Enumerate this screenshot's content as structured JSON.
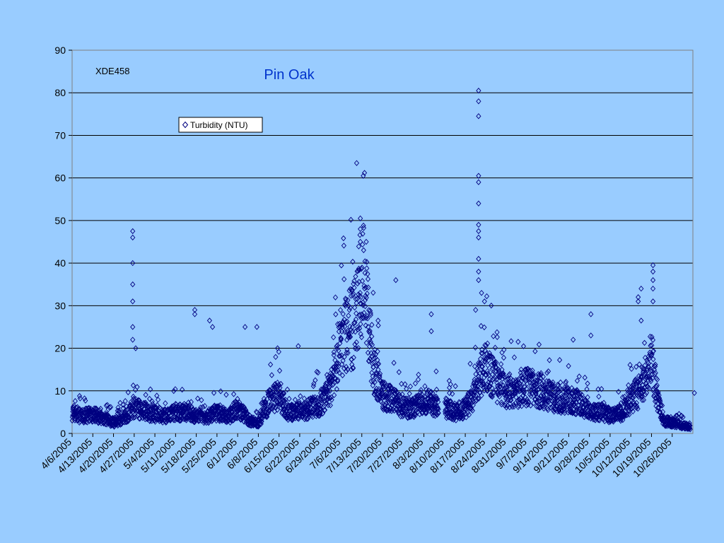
{
  "colors": {
    "background": "#99ccff",
    "plot_area": "#99ccff",
    "gridline": "#000000",
    "marker": "#000080",
    "title": "#0033cc"
  },
  "chart_data": {
    "type": "scatter",
    "title": "Pin Oak",
    "annotation": "XDE458",
    "xlabel": "",
    "ylabel": "",
    "ylim": [
      0,
      90
    ],
    "yticks": [
      0,
      10,
      20,
      30,
      40,
      50,
      60,
      70,
      80,
      90
    ],
    "xlim": [
      "4/6/2005",
      "11/2/2005"
    ],
    "xtick_labels": [
      "4/6/2005",
      "4/13/2005",
      "4/20/2005",
      "4/27/2005",
      "5/4/2005",
      "5/11/2005",
      "5/18/2005",
      "5/25/2005",
      "6/1/2005",
      "6/8/2005",
      "6/15/2005",
      "6/22/2005",
      "6/29/2005",
      "7/6/2005",
      "7/13/2005",
      "7/20/2005",
      "7/27/2005",
      "8/3/2005",
      "8/10/2005",
      "8/17/2005",
      "8/24/2005",
      "8/31/2005",
      "9/7/2005",
      "9/14/2005",
      "9/21/2005",
      "9/28/2005",
      "10/5/2005",
      "10/12/2005",
      "10/19/2005",
      "10/26/2005"
    ],
    "grid": {
      "horizontal": true,
      "vertical": false
    },
    "legend": {
      "position": "upper-left",
      "entries": [
        "Turbidity (NTU)"
      ]
    },
    "marker": "open-diamond",
    "series": [
      {
        "name": "Turbidity (NTU)",
        "baseline_profile": [
          [
            "4/6/2005",
            5
          ],
          [
            "4/9/2005",
            4
          ],
          [
            "4/13/2005",
            4.5
          ],
          [
            "4/17/2005",
            3.5
          ],
          [
            "4/20/2005",
            2.5
          ],
          [
            "4/24/2005",
            4
          ],
          [
            "4/27/2005",
            6
          ],
          [
            "5/1/2005",
            5
          ],
          [
            "5/4/2005",
            4.5
          ],
          [
            "5/8/2005",
            4
          ],
          [
            "5/11/2005",
            5
          ],
          [
            "5/15/2005",
            5
          ],
          [
            "5/18/2005",
            4
          ],
          [
            "5/22/2005",
            4
          ],
          [
            "5/25/2005",
            5
          ],
          [
            "5/29/2005",
            4
          ],
          [
            "6/1/2005",
            6
          ],
          [
            "6/5/2005",
            3
          ],
          [
            "6/8/2005",
            2.5
          ],
          [
            "6/12/2005",
            8
          ],
          [
            "6/15/2005",
            9
          ],
          [
            "6/18/2005",
            5
          ],
          [
            "6/22/2005",
            5
          ],
          [
            "6/26/2005",
            6
          ],
          [
            "6/29/2005",
            7
          ],
          [
            "7/2/2005",
            10
          ],
          [
            "7/4/2005",
            15
          ],
          [
            "7/6/2005",
            20
          ],
          [
            "7/8/2005",
            24
          ],
          [
            "7/10/2005",
            25
          ],
          [
            "7/11/2005",
            28
          ],
          [
            "7/13/2005",
            38
          ],
          [
            "7/15/2005",
            27
          ],
          [
            "7/17/2005",
            15
          ],
          [
            "7/20/2005",
            9
          ],
          [
            "7/23/2005",
            8
          ],
          [
            "7/27/2005",
            6
          ],
          [
            "7/31/2005",
            6
          ],
          [
            "8/3/2005",
            8
          ],
          [
            "8/6/2005",
            7
          ],
          [
            "8/10/2005",
            6
          ],
          [
            "8/14/2005",
            5
          ],
          [
            "8/17/2005",
            6
          ],
          [
            "8/20/2005",
            9
          ],
          [
            "8/22/2005",
            14
          ],
          [
            "8/24/2005",
            16
          ],
          [
            "8/27/2005",
            12
          ],
          [
            "8/31/2005",
            10
          ],
          [
            "9/4/2005",
            10
          ],
          [
            "9/7/2005",
            11
          ],
          [
            "9/11/2005",
            10
          ],
          [
            "9/14/2005",
            9
          ],
          [
            "9/18/2005",
            8
          ],
          [
            "9/21/2005",
            8
          ],
          [
            "9/25/2005",
            7
          ],
          [
            "9/28/2005",
            5
          ],
          [
            "10/2/2005",
            5
          ],
          [
            "10/5/2005",
            4
          ],
          [
            "10/9/2005",
            5
          ],
          [
            "10/12/2005",
            8
          ],
          [
            "10/15/2005",
            10
          ],
          [
            "10/17/2005",
            13
          ],
          [
            "10/19/2005",
            18
          ],
          [
            "10/21/2005",
            8
          ],
          [
            "10/23/2005",
            3
          ],
          [
            "10/26/2005",
            2.5
          ],
          [
            "10/29/2005",
            2
          ],
          [
            "11/1/2005",
            1.5
          ]
        ],
        "spikes": [
          [
            "4/26/2005",
            47.5
          ],
          [
            "4/26/2005",
            46
          ],
          [
            "4/26/2005",
            40
          ],
          [
            "4/26/2005",
            35
          ],
          [
            "4/26/2005",
            31
          ],
          [
            "4/26/2005",
            25
          ],
          [
            "4/26/2005",
            22
          ],
          [
            "4/27/2005",
            20
          ],
          [
            "5/17/2005",
            29
          ],
          [
            "5/17/2005",
            28
          ],
          [
            "5/22/2005",
            26.5
          ],
          [
            "5/23/2005",
            25
          ],
          [
            "6/3/2005",
            25
          ],
          [
            "6/7/2005",
            25
          ],
          [
            "6/14/2005",
            20
          ],
          [
            "6/21/2005",
            20.5
          ],
          [
            "7/12/2005",
            50.5
          ],
          [
            "7/12/2005",
            48
          ],
          [
            "7/12/2005",
            45
          ],
          [
            "7/13/2005",
            60.5
          ],
          [
            "7/14/2005",
            45
          ],
          [
            "7/18/2005",
            26.5
          ],
          [
            "7/24/2005",
            36
          ],
          [
            "8/5/2005",
            28
          ],
          [
            "8/5/2005",
            24
          ],
          [
            "8/21/2005",
            80.5
          ],
          [
            "8/21/2005",
            78
          ],
          [
            "8/21/2005",
            74.5
          ],
          [
            "8/21/2005",
            60.5
          ],
          [
            "8/21/2005",
            59
          ],
          [
            "8/21/2005",
            54
          ],
          [
            "8/21/2005",
            49
          ],
          [
            "8/21/2005",
            47.5
          ],
          [
            "8/21/2005",
            46
          ],
          [
            "8/21/2005",
            41
          ],
          [
            "8/21/2005",
            38
          ],
          [
            "8/21/2005",
            36
          ],
          [
            "8/22/2005",
            33
          ],
          [
            "8/23/2005",
            31
          ],
          [
            "8/20/2005",
            29
          ],
          [
            "9/22/2005",
            22
          ],
          [
            "9/28/2005",
            28
          ],
          [
            "9/28/2005",
            23
          ],
          [
            "10/14/2005",
            32
          ],
          [
            "10/14/2005",
            31
          ],
          [
            "10/15/2005",
            34
          ],
          [
            "10/15/2005",
            26.5
          ],
          [
            "10/19/2005",
            39.5
          ],
          [
            "10/19/2005",
            38
          ],
          [
            "10/19/2005",
            36
          ],
          [
            "10/19/2005",
            34
          ],
          [
            "10/19/2005",
            31
          ],
          [
            "11/2/2005",
            9.5
          ]
        ],
        "data_gap": [
          "8/8/2005",
          "8/9/2005"
        ]
      }
    ]
  }
}
